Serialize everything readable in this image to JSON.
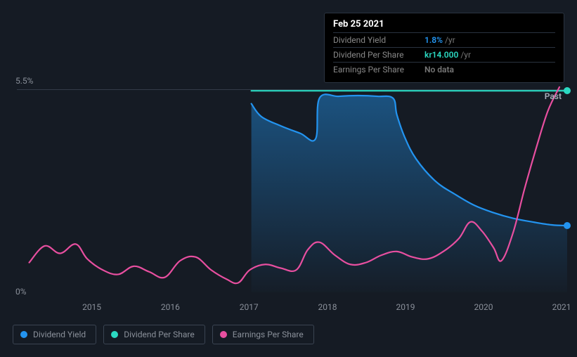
{
  "colors": {
    "background": "#151b24",
    "grid": "#333b48",
    "axis_text": "#8a909a",
    "fill_gradient_top": "rgba(35,150,240,0.45)",
    "fill_gradient_bottom": "rgba(35,150,240,0.02)",
    "dividend_yield": "#2394f0",
    "dividend_per_share": "#2bd9c2",
    "earnings_per_share": "#e84fa0",
    "nodata": "#777777"
  },
  "tooltip": {
    "date": "Feb 25 2021",
    "rows": [
      {
        "label": "Dividend Yield",
        "value": "1.8%",
        "suffix": "/yr",
        "color_key": "dividend_yield"
      },
      {
        "label": "Dividend Per Share",
        "value": "kr14.000",
        "suffix": "/yr",
        "color_key": "dividend_per_share"
      },
      {
        "label": "Earnings Per Share",
        "value": "No data",
        "suffix": "",
        "color_key": "nodata"
      }
    ]
  },
  "y_axis": {
    "labels": [
      {
        "text": "5.5%",
        "pct_from_top": 26
      },
      {
        "text": "0%",
        "pct_from_top": 98
      }
    ]
  },
  "x_axis": {
    "ticks": [
      {
        "label": "2015",
        "pct": 14.7
      },
      {
        "label": "2016",
        "pct": 28.8
      },
      {
        "label": "2017",
        "pct": 42.9
      },
      {
        "label": "2018",
        "pct": 57.0
      },
      {
        "label": "2019",
        "pct": 71.0
      },
      {
        "label": "2020",
        "pct": 85.0
      },
      {
        "label": "2021",
        "pct": 99.0
      }
    ]
  },
  "past_label": "Past",
  "guideline_top_pct": 28.5,
  "chart": {
    "type": "line",
    "xlim": [
      2014.0,
      2021.2
    ],
    "ylim_pct": [
      0,
      5.5
    ],
    "line_width": 2.2,
    "series": {
      "dividend_yield": {
        "fill": true,
        "end_marker": true,
        "points": [
          [
            2017.12,
            5.1
          ],
          [
            2017.25,
            4.75
          ],
          [
            2017.5,
            4.5
          ],
          [
            2017.75,
            4.3
          ],
          [
            2017.95,
            4.15
          ],
          [
            2018.0,
            5.25
          ],
          [
            2018.25,
            5.3
          ],
          [
            2018.5,
            5.32
          ],
          [
            2018.75,
            5.3
          ],
          [
            2018.95,
            5.25
          ],
          [
            2019.0,
            4.8
          ],
          [
            2019.1,
            4.2
          ],
          [
            2019.25,
            3.6
          ],
          [
            2019.5,
            3.0
          ],
          [
            2019.75,
            2.65
          ],
          [
            2020.0,
            2.35
          ],
          [
            2020.25,
            2.15
          ],
          [
            2020.5,
            2.0
          ],
          [
            2020.75,
            1.9
          ],
          [
            2021.0,
            1.82
          ],
          [
            2021.2,
            1.8
          ]
        ]
      },
      "dividend_per_share": {
        "fill": false,
        "end_marker": true,
        "points": [
          [
            2017.12,
            5.45
          ],
          [
            2021.2,
            5.45
          ]
        ]
      },
      "earnings_per_share": {
        "fill": false,
        "end_marker": false,
        "points": [
          [
            2014.25,
            0.8
          ],
          [
            2014.45,
            1.25
          ],
          [
            2014.65,
            1.05
          ],
          [
            2014.85,
            1.3
          ],
          [
            2015.0,
            0.9
          ],
          [
            2015.2,
            0.6
          ],
          [
            2015.4,
            0.48
          ],
          [
            2015.6,
            0.7
          ],
          [
            2015.8,
            0.55
          ],
          [
            2016.0,
            0.4
          ],
          [
            2016.2,
            0.85
          ],
          [
            2016.4,
            0.95
          ],
          [
            2016.6,
            0.6
          ],
          [
            2016.8,
            0.35
          ],
          [
            2016.95,
            0.25
          ],
          [
            2017.1,
            0.6
          ],
          [
            2017.3,
            0.75
          ],
          [
            2017.5,
            0.65
          ],
          [
            2017.7,
            0.6
          ],
          [
            2017.85,
            1.15
          ],
          [
            2018.0,
            1.35
          ],
          [
            2018.2,
            1.0
          ],
          [
            2018.4,
            0.75
          ],
          [
            2018.6,
            0.8
          ],
          [
            2018.8,
            1.0
          ],
          [
            2019.0,
            1.1
          ],
          [
            2019.2,
            0.95
          ],
          [
            2019.4,
            0.9
          ],
          [
            2019.6,
            1.1
          ],
          [
            2019.8,
            1.45
          ],
          [
            2019.95,
            1.9
          ],
          [
            2020.1,
            1.65
          ],
          [
            2020.25,
            1.2
          ],
          [
            2020.35,
            0.85
          ],
          [
            2020.5,
            1.6
          ],
          [
            2020.65,
            2.8
          ],
          [
            2020.8,
            3.9
          ],
          [
            2020.95,
            4.9
          ],
          [
            2021.1,
            5.55
          ]
        ]
      }
    }
  },
  "legend": {
    "items": [
      {
        "label": "Dividend Yield",
        "color_key": "dividend_yield"
      },
      {
        "label": "Dividend Per Share",
        "color_key": "dividend_per_share"
      },
      {
        "label": "Earnings Per Share",
        "color_key": "earnings_per_share"
      }
    ]
  }
}
